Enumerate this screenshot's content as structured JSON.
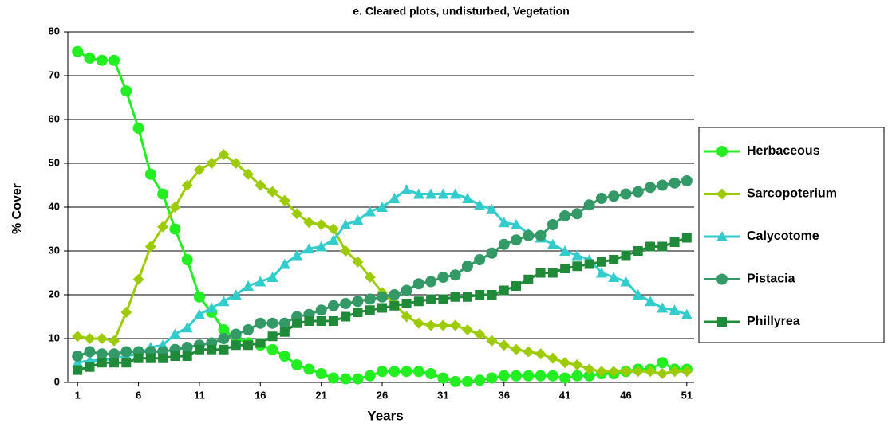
{
  "chart_data": {
    "type": "line",
    "title": "e. Cleared plots, undisturbed, Vegetation",
    "xlabel": "Years",
    "ylabel": "% Cover",
    "x": [
      1,
      2,
      3,
      4,
      5,
      6,
      7,
      8,
      9,
      10,
      11,
      12,
      13,
      14,
      15,
      16,
      17,
      18,
      19,
      20,
      21,
      22,
      23,
      24,
      25,
      26,
      27,
      28,
      29,
      30,
      31,
      32,
      33,
      34,
      35,
      36,
      37,
      38,
      39,
      40,
      41,
      42,
      43,
      44,
      45,
      46,
      47,
      48,
      49,
      50,
      51
    ],
    "xlim": [
      0.2,
      51.6
    ],
    "xticks": [
      1,
      6,
      11,
      16,
      21,
      26,
      31,
      36,
      41,
      46,
      51
    ],
    "ylim": [
      0,
      80
    ],
    "yticks": [
      0,
      10,
      20,
      30,
      40,
      50,
      60,
      70,
      80
    ],
    "grid": true,
    "legend": "right",
    "series": [
      {
        "name": "Herbaceous",
        "color": "#22ee22",
        "marker": "circle",
        "values": [
          75.5,
          74,
          73.5,
          73.5,
          66.5,
          58,
          47.5,
          43,
          35,
          28,
          19.5,
          16,
          12,
          10,
          9,
          8.5,
          7.5,
          6,
          4,
          3,
          2,
          1,
          0.8,
          0.8,
          1.5,
          2.5,
          2.5,
          2.5,
          2.5,
          2,
          1,
          0.2,
          0.2,
          0.5,
          1,
          1.5,
          1.5,
          1.5,
          1.5,
          1.5,
          1,
          1.5,
          1.5,
          2,
          2,
          2.5,
          3,
          3,
          4.5,
          3,
          3
        ]
      },
      {
        "name": "Sarcopoterium",
        "color": "#9ccc00",
        "marker": "diamond",
        "values": [
          10.5,
          10,
          10,
          9.5,
          16,
          23.5,
          31,
          35.5,
          40,
          45,
          48.5,
          50,
          52,
          50,
          47.5,
          45,
          43.5,
          41.5,
          38.5,
          36.5,
          36,
          35,
          30,
          27.5,
          24,
          20.5,
          18,
          15,
          13.5,
          13,
          13,
          13,
          12,
          11,
          9.5,
          8.5,
          7.5,
          7,
          6.5,
          5.5,
          4.5,
          4,
          3,
          2.5,
          2.5,
          2.5,
          2.5,
          2.5,
          2,
          2.5,
          2.5
        ]
      },
      {
        "name": "Calycotome",
        "color": "#33cccc",
        "marker": "triangle",
        "values": [
          4.5,
          5,
          5,
          5.5,
          6,
          6.5,
          8,
          8.5,
          11,
          12.5,
          15.5,
          17,
          18.5,
          20,
          22,
          23,
          24,
          27,
          29,
          30.5,
          31,
          32.5,
          36,
          37,
          39,
          40,
          42,
          44,
          43,
          43,
          43,
          43,
          42,
          40.5,
          39.5,
          36.5,
          36,
          34,
          33,
          31.5,
          30,
          29,
          28,
          25,
          24,
          23,
          20,
          18.5,
          17,
          16.5,
          15.5
        ]
      },
      {
        "name": "Pistacia",
        "color": "#339966",
        "marker": "circle",
        "values": [
          6,
          7,
          6.5,
          6.5,
          7,
          7,
          7,
          7,
          7.5,
          8,
          8.5,
          9,
          10,
          11,
          12,
          13.5,
          13.5,
          13.5,
          15,
          15.5,
          16.5,
          17.5,
          18,
          18.5,
          19,
          19.5,
          20,
          21,
          22.5,
          23,
          24,
          24.5,
          26.5,
          28,
          29.5,
          31.5,
          32.5,
          33.5,
          33.5,
          36,
          38,
          38.5,
          40.5,
          42,
          42.5,
          43,
          43.5,
          44.5,
          45,
          45.5,
          46
        ]
      },
      {
        "name": "Phillyrea",
        "color": "#1f8a38",
        "marker": "square",
        "values": [
          2.8,
          3.5,
          4.5,
          4.5,
          4.5,
          5.5,
          5.5,
          5.5,
          6,
          6,
          7.5,
          7.5,
          7.5,
          8.5,
          8.5,
          9,
          10.5,
          11.5,
          13.5,
          14,
          14,
          14,
          15,
          16,
          16.5,
          17,
          17.5,
          18,
          18.5,
          19,
          19,
          19.5,
          19.5,
          20,
          20,
          21,
          22,
          23.5,
          25,
          25,
          26,
          26.5,
          27,
          27.5,
          28,
          29,
          30,
          31,
          31,
          32,
          33
        ]
      }
    ]
  }
}
